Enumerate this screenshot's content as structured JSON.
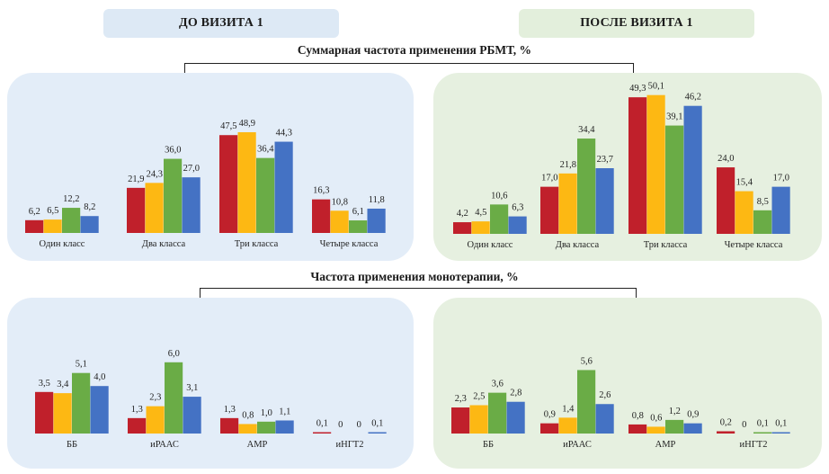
{
  "headers": {
    "before": "ДО ВИЗИТА 1",
    "after": "ПОСЛЕ ВИЗИТА 1"
  },
  "colors": [
    "#c0202b",
    "#fdb813",
    "#6aac46",
    "#4472c4"
  ],
  "chart_data": [
    {
      "type": "bar",
      "title": "Суммарная частота применения РБМТ, %",
      "panel": "before",
      "categories": [
        "Один класс",
        "Два класса",
        "Три класса",
        "Четыре класса"
      ],
      "series": [
        {
          "values": [
            6.2,
            21.9,
            47.5,
            16.3
          ],
          "labels": [
            "6,2",
            "21,9",
            "47,5",
            "16,3"
          ]
        },
        {
          "values": [
            6.5,
            24.3,
            48.9,
            10.8
          ],
          "labels": [
            "6,5",
            "24,3",
            "48,9",
            "10,8"
          ]
        },
        {
          "values": [
            12.2,
            36.0,
            36.4,
            6.1
          ],
          "labels": [
            "12,2",
            "36,0",
            "36,4",
            "6,1"
          ]
        },
        {
          "values": [
            8.2,
            27.0,
            44.3,
            11.8
          ],
          "labels": [
            "8,2",
            "27,0",
            "44,3",
            "11,8"
          ]
        }
      ]
    },
    {
      "type": "bar",
      "panel": "after",
      "categories": [
        "Один класс",
        "Два класса",
        "Три класса",
        "Четыре класса"
      ],
      "series": [
        {
          "values": [
            4.2,
            17.0,
            49.3,
            24.0
          ],
          "labels": [
            "4,2",
            "17,0",
            "49,3",
            "24,0"
          ]
        },
        {
          "values": [
            4.5,
            21.8,
            50.1,
            15.4
          ],
          "labels": [
            "4,5",
            "21,8",
            "50,1",
            "15,4"
          ]
        },
        {
          "values": [
            10.6,
            34.4,
            39.1,
            8.5
          ],
          "labels": [
            "10,6",
            "34,4",
            "39,1",
            "8,5"
          ]
        },
        {
          "values": [
            6.3,
            23.7,
            46.2,
            17.0
          ],
          "labels": [
            "6,3",
            "23,7",
            "46,2",
            "17,0"
          ]
        }
      ]
    },
    {
      "type": "bar",
      "title": "Частота применения монотерапии, %",
      "panel": "before",
      "categories": [
        "ББ",
        "иРААС",
        "АМР",
        "иНГТ2"
      ],
      "series": [
        {
          "values": [
            3.5,
            1.3,
            1.3,
            0.1
          ],
          "labels": [
            "3,5",
            "1,3",
            "1,3",
            "0,1"
          ]
        },
        {
          "values": [
            3.4,
            2.3,
            0.8,
            0
          ],
          "labels": [
            "3,4",
            "2,3",
            "0,8",
            "0"
          ]
        },
        {
          "values": [
            5.1,
            6.0,
            1.0,
            0
          ],
          "labels": [
            "5,1",
            "6,0",
            "1,0",
            "0"
          ]
        },
        {
          "values": [
            4.0,
            3.1,
            1.1,
            0.1
          ],
          "labels": [
            "4,0",
            "3,1",
            "1,1",
            "0,1"
          ]
        }
      ]
    },
    {
      "type": "bar",
      "panel": "after",
      "categories": [
        "ББ",
        "иРААС",
        "АМР",
        "иНГТ2"
      ],
      "series": [
        {
          "values": [
            2.3,
            0.9,
            0.8,
            0.2
          ],
          "labels": [
            "2,3",
            "0,9",
            "0,8",
            "0,2"
          ]
        },
        {
          "values": [
            2.5,
            1.4,
            0.6,
            0
          ],
          "labels": [
            "2,5",
            "1,4",
            "0,6",
            "0"
          ]
        },
        {
          "values": [
            3.6,
            5.6,
            1.2,
            0.1
          ],
          "labels": [
            "3,6",
            "5,6",
            "1,2",
            "0,1"
          ]
        },
        {
          "values": [
            2.8,
            2.6,
            0.9,
            0.1
          ],
          "labels": [
            "2,8",
            "2,6",
            "0,9",
            "0,1"
          ]
        }
      ]
    }
  ]
}
